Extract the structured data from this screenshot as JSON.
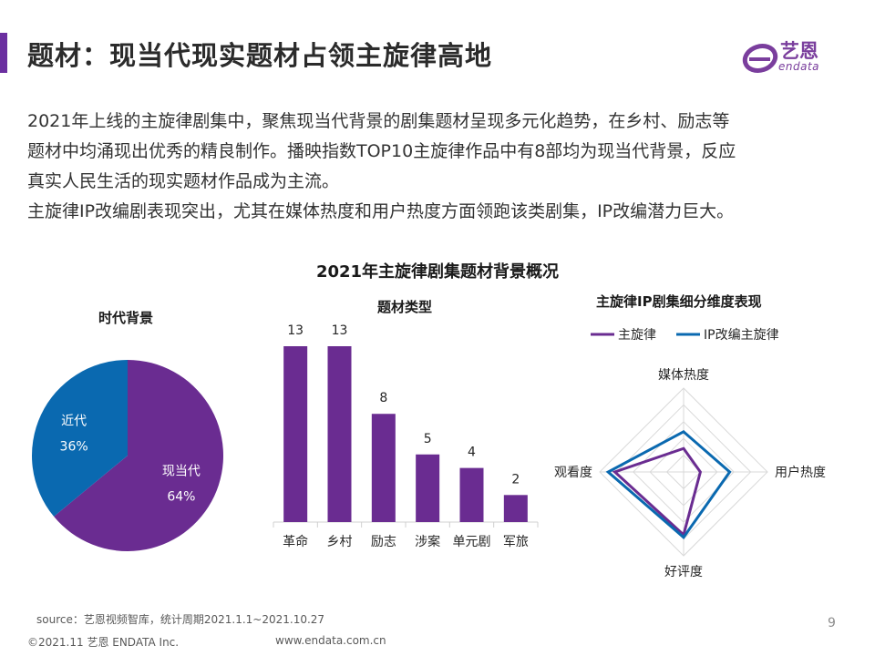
{
  "header": {
    "title": "题材：现当代现实题材占领主旋律高地",
    "logo_cn": "艺恩",
    "logo_en": "endata"
  },
  "intro": {
    "lines": [
      "2021年上线的主旋律剧集中，聚焦现当代背景的剧集题材呈现多元化趋势，在乡村、励志等",
      "题材中均涌现出优秀的精良制作。播映指数TOP10主旋律作品中有8部均为现当代背景，反应",
      "真实人民生活的现实题材作品成为主流。",
      "主旋律IP改编剧表现突出，尤其在媒体热度和用户热度方面领跑该类剧集，IP改编潜力巨大。"
    ]
  },
  "main_title": "2021年主旋律剧集题材背景概况",
  "colors": {
    "purple": "#6a2c91",
    "blue": "#0a69b0",
    "accent": "#6b2fa0"
  },
  "chart_data": [
    {
      "type": "pie",
      "title": "时代背景",
      "labels": [
        "现当代",
        "近代"
      ],
      "values": [
        64,
        36
      ],
      "value_labels": [
        "64%",
        "36%"
      ],
      "colors": [
        "#6a2c91",
        "#0a69b0"
      ]
    },
    {
      "type": "bar",
      "title": "题材类型",
      "categories": [
        "革命",
        "乡村",
        "励志",
        "涉案",
        "单元剧",
        "军旅"
      ],
      "values": [
        13,
        13,
        8,
        5,
        4,
        2
      ],
      "ylim": [
        0,
        15
      ],
      "color": "#6a2c91"
    },
    {
      "type": "radar",
      "title": "主旋律IP剧集细分维度表现",
      "axes": [
        "媒体热度",
        "用户热度",
        "好评度",
        "观看度"
      ],
      "series": [
        {
          "name": "主旋律",
          "values": [
            0.28,
            0.2,
            0.75,
            0.82
          ],
          "color": "#6a2c91"
        },
        {
          "name": "IP改编主旋律",
          "values": [
            0.48,
            0.55,
            0.78,
            0.9
          ],
          "color": "#0a69b0"
        }
      ],
      "legend": "top"
    }
  ],
  "footer": {
    "source": "source：艺恩视频智库，统计周期2021.1.1~2021.10.27",
    "copyright": "©2021.11 艺恩 ENDATA Inc.",
    "website": "www.endata.com.cn",
    "page": "9"
  }
}
